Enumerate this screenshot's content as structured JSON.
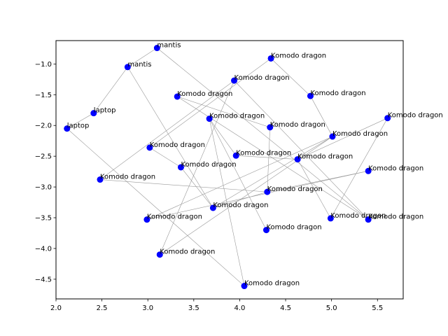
{
  "chart_data": {
    "type": "scatter",
    "title": "",
    "xlabel": "",
    "ylabel": "",
    "xlim": [
      2.0,
      5.78
    ],
    "ylim": [
      -4.82,
      -0.62
    ],
    "x_ticks": [
      2.0,
      2.5,
      3.0,
      3.5,
      4.0,
      4.5,
      5.0,
      5.5
    ],
    "y_ticks": [
      -1.0,
      -1.5,
      -2.0,
      -2.5,
      -3.0,
      -3.5,
      -4.0,
      -4.5
    ],
    "x_tick_labels": [
      "2.0",
      "2.5",
      "3.0",
      "3.5",
      "4.0",
      "4.5",
      "5.0",
      "5.5"
    ],
    "y_tick_labels": [
      "−1.0",
      "−1.5",
      "−2.0",
      "−2.5",
      "−3.0",
      "−3.5",
      "−4.0",
      "−4.5"
    ],
    "grid": false,
    "point_color": "#0000ff",
    "edge_color": "#999999",
    "points": [
      {
        "label": "mantis",
        "x": 3.1,
        "y": -0.74
      },
      {
        "label": "mantis",
        "x": 2.78,
        "y": -1.05
      },
      {
        "label": "laptop",
        "x": 2.41,
        "y": -1.8
      },
      {
        "label": "laptop",
        "x": 2.12,
        "y": -2.05
      },
      {
        "label": "Komodo dragon",
        "x": 4.34,
        "y": -0.91
      },
      {
        "label": "Komodo dragon",
        "x": 3.94,
        "y": -1.27
      },
      {
        "label": "Komodo dragon",
        "x": 3.32,
        "y": -1.53
      },
      {
        "label": "Komodo dragon",
        "x": 4.77,
        "y": -1.52
      },
      {
        "label": "Komodo dragon",
        "x": 5.61,
        "y": -1.88
      },
      {
        "label": "Komodo dragon",
        "x": 3.67,
        "y": -1.89
      },
      {
        "label": "Komodo dragon",
        "x": 4.33,
        "y": -2.03
      },
      {
        "label": "Komodo dragon",
        "x": 5.01,
        "y": -2.18
      },
      {
        "label": "Komodo dragon",
        "x": 3.02,
        "y": -2.36
      },
      {
        "label": "Komodo dragon",
        "x": 3.96,
        "y": -2.49
      },
      {
        "label": "Komodo dragon",
        "x": 4.63,
        "y": -2.55
      },
      {
        "label": "Komodo dragon",
        "x": 3.36,
        "y": -2.68
      },
      {
        "label": "Komodo dragon",
        "x": 5.4,
        "y": -2.74
      },
      {
        "label": "Komodo dragon",
        "x": 2.48,
        "y": -2.88
      },
      {
        "label": "Komodo dragon",
        "x": 4.3,
        "y": -3.08
      },
      {
        "label": "Komodo dragon",
        "x": 3.71,
        "y": -3.34
      },
      {
        "label": "Komodo dragon",
        "x": 4.99,
        "y": -3.51
      },
      {
        "label": "Komodo dragon",
        "x": 5.4,
        "y": -3.53
      },
      {
        "label": "Komodo dragon",
        "x": 2.99,
        "y": -3.53
      },
      {
        "label": "Komodo dragon",
        "x": 4.29,
        "y": -3.7
      },
      {
        "label": "Komodo dragon",
        "x": 3.13,
        "y": -4.1
      },
      {
        "label": "Komodo dragon",
        "x": 4.05,
        "y": -4.61
      }
    ],
    "edges": [
      [
        0,
        1
      ],
      [
        1,
        2
      ],
      [
        2,
        3
      ],
      [
        1,
        19
      ],
      [
        0,
        21
      ],
      [
        4,
        7
      ],
      [
        7,
        11
      ],
      [
        11,
        22
      ],
      [
        4,
        12
      ],
      [
        8,
        20
      ],
      [
        8,
        14
      ],
      [
        5,
        17
      ],
      [
        5,
        24
      ],
      [
        6,
        10
      ],
      [
        6,
        21
      ],
      [
        9,
        13
      ],
      [
        9,
        23
      ],
      [
        9,
        25
      ],
      [
        10,
        18
      ],
      [
        11,
        24
      ],
      [
        12,
        15
      ],
      [
        13,
        14
      ],
      [
        14,
        20
      ],
      [
        15,
        19
      ],
      [
        16,
        18
      ],
      [
        16,
        22
      ],
      [
        17,
        18
      ],
      [
        18,
        19
      ],
      [
        19,
        11
      ],
      [
        25,
        3
      ],
      [
        21,
        5
      ]
    ]
  }
}
